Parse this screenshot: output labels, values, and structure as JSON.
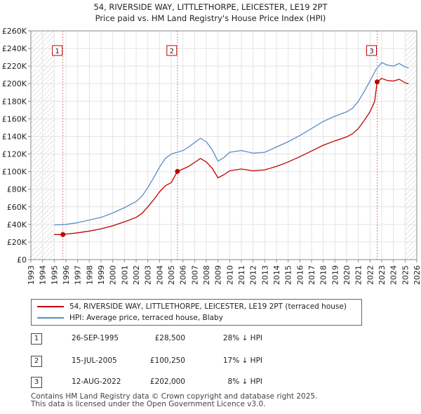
{
  "chart_data": {
    "type": "line",
    "title": "54, RIVERSIDE WAY, LITTLETHORPE, LEICESTER, LE19 2PT",
    "subtitle": "Price paid vs. HM Land Registry's House Price Index (HPI)",
    "xlabel": "",
    "ylabel": "",
    "xlim": [
      1993,
      2026
    ],
    "ylim": [
      0,
      260000
    ],
    "x_ticks": [
      "1993",
      "1994",
      "1995",
      "1996",
      "1997",
      "1998",
      "1999",
      "2000",
      "2001",
      "2002",
      "2003",
      "2004",
      "2005",
      "2006",
      "2007",
      "2008",
      "2009",
      "2010",
      "2011",
      "2012",
      "2013",
      "2014",
      "2015",
      "2016",
      "2017",
      "2018",
      "2019",
      "2020",
      "2021",
      "2022",
      "2023",
      "2024",
      "2025",
      "2026"
    ],
    "y_ticks": [
      {
        "value": 0,
        "label": "£0"
      },
      {
        "value": 20000,
        "label": "£20K"
      },
      {
        "value": 40000,
        "label": "£40K"
      },
      {
        "value": 60000,
        "label": "£60K"
      },
      {
        "value": 80000,
        "label": "£80K"
      },
      {
        "value": 100000,
        "label": "£100K"
      },
      {
        "value": 120000,
        "label": "£120K"
      },
      {
        "value": 140000,
        "label": "£140K"
      },
      {
        "value": 160000,
        "label": "£160K"
      },
      {
        "value": 180000,
        "label": "£180K"
      },
      {
        "value": 200000,
        "label": "£200K"
      },
      {
        "value": 220000,
        "label": "£220K"
      },
      {
        "value": 240000,
        "label": "£240K"
      },
      {
        "value": 260000,
        "label": "£260K"
      }
    ],
    "hatch_regions": [
      [
        1993,
        1995.0
      ],
      [
        2025.0,
        2026
      ]
    ],
    "series": [
      {
        "name": "HPI: Average price, terraced house, Blaby",
        "color": "#5b8cc8",
        "x": [
          1995.0,
          1996.0,
          1997.0,
          1998.0,
          1999.0,
          2000.0,
          2001.0,
          2002.0,
          2002.5,
          2003.0,
          2003.5,
          2004.0,
          2004.5,
          2005.0,
          2005.5,
          2006.0,
          2006.5,
          2007.0,
          2007.5,
          2008.0,
          2008.5,
          2009.0,
          2009.5,
          2010.0,
          2011.0,
          2012.0,
          2013.0,
          2014.0,
          2015.0,
          2016.0,
          2017.0,
          2018.0,
          2019.0,
          2020.0,
          2020.5,
          2021.0,
          2021.5,
          2022.0,
          2022.5,
          2023.0,
          2023.5,
          2024.0,
          2024.5,
          2025.0,
          2025.3
        ],
        "values": [
          39500,
          40000,
          42000,
          45000,
          48000,
          53000,
          59000,
          66000,
          72000,
          82000,
          93000,
          105000,
          115000,
          120000,
          122000,
          124000,
          128000,
          133000,
          138000,
          134000,
          125000,
          112000,
          116000,
          122000,
          124000,
          121000,
          122000,
          128000,
          134000,
          141000,
          149000,
          157000,
          163000,
          168000,
          172000,
          180000,
          191000,
          203000,
          216000,
          224000,
          221000,
          220000,
          223000,
          219000,
          218000
        ]
      },
      {
        "name": "54, RIVERSIDE WAY, LITTLETHORPE, LEICESTER, LE19 2PT (terraced house)",
        "color": "#c00000",
        "x": [
          1995.0,
          1995.74,
          1996.0,
          1997.0,
          1998.0,
          1999.0,
          2000.0,
          2001.0,
          2002.0,
          2002.5,
          2003.0,
          2003.5,
          2004.0,
          2004.5,
          2005.0,
          2005.53,
          2006.0,
          2006.5,
          2007.0,
          2007.5,
          2008.0,
          2008.5,
          2009.0,
          2009.5,
          2010.0,
          2011.0,
          2012.0,
          2013.0,
          2014.0,
          2015.0,
          2016.0,
          2017.0,
          2018.0,
          2019.0,
          2020.0,
          2020.5,
          2021.0,
          2021.5,
          2022.0,
          2022.4,
          2022.61,
          2023.0,
          2023.5,
          2024.0,
          2024.5,
          2025.0,
          2025.3
        ],
        "values": [
          28500,
          28500,
          29000,
          30500,
          32500,
          35000,
          38500,
          43000,
          48000,
          52500,
          60000,
          68000,
          77000,
          84000,
          87500,
          100250,
          103000,
          106000,
          110500,
          115000,
          111000,
          104000,
          93000,
          96500,
          101000,
          103000,
          101000,
          102000,
          106000,
          111000,
          117000,
          123500,
          130000,
          135000,
          139500,
          143000,
          149000,
          158000,
          168000,
          180000,
          202000,
          206000,
          203500,
          203000,
          205000,
          201000,
          200000
        ]
      }
    ],
    "transactions": [
      {
        "num": "1",
        "x": 1995.74,
        "value": 28500,
        "date": "26-SEP-1995",
        "price": "£28,500",
        "hpi_diff": "28% ↓ HPI"
      },
      {
        "num": "2",
        "x": 2005.53,
        "value": 100250,
        "date": "15-JUL-2005",
        "price": "£100,250",
        "hpi_diff": "17% ↓ HPI"
      },
      {
        "num": "3",
        "x": 2022.61,
        "value": 202000,
        "date": "12-AUG-2022",
        "price": "£202,000",
        "hpi_diff": "8% ↓ HPI"
      }
    ]
  },
  "legend": {
    "property_label": "54, RIVERSIDE WAY, LITTLETHORPE, LEICESTER, LE19 2PT (terraced house)",
    "hpi_label": "HPI: Average price, terraced house, Blaby",
    "property_color": "#c00000",
    "hpi_color": "#5b8cc8"
  },
  "footer": {
    "line1": "Contains HM Land Registry data © Crown copyright and database right 2025.",
    "line2": "This data is licensed under the Open Government Licence v3.0."
  }
}
